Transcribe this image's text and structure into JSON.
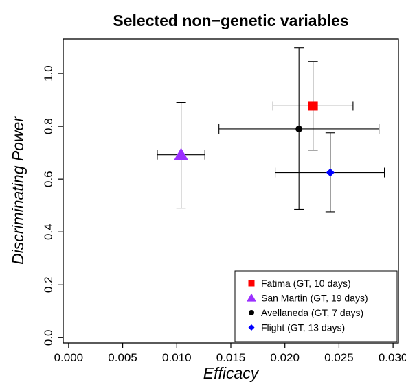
{
  "chart_data": {
    "type": "scatter",
    "title": "Selected non−genetic variables",
    "xlabel": "Efficacy",
    "ylabel": "Discriminating Power",
    "xlim": [
      -0.0005,
      0.0305
    ],
    "ylim": [
      -0.02,
      1.13
    ],
    "x_ticks": [
      0.0,
      0.005,
      0.01,
      0.015,
      0.02,
      0.025,
      0.03
    ],
    "x_tick_labels": [
      "0.000",
      "0.005",
      "0.010",
      "0.015",
      "0.020",
      "0.025",
      "0.030"
    ],
    "y_ticks": [
      0.0,
      0.2,
      0.4,
      0.6,
      0.8,
      1.0
    ],
    "y_tick_labels": [
      "0.0",
      "0.2",
      "0.4",
      "0.6",
      "0.8",
      "1.0"
    ],
    "grid": false,
    "legend_position": "bottom-right",
    "series": [
      {
        "name": "Fatima (GT, 10 days)",
        "marker": "square",
        "color": "#ff0000",
        "x": 0.0226,
        "y": 0.877,
        "x_err": [
          0.0189,
          0.0263
        ],
        "y_err": [
          0.71,
          1.045
        ]
      },
      {
        "name": "San Martin (GT, 19 days)",
        "marker": "triangle",
        "color": "#9b30ff",
        "x": 0.0104,
        "y": 0.692,
        "x_err": [
          0.0082,
          0.0126
        ],
        "y_err": [
          0.49,
          0.89
        ]
      },
      {
        "name": "Avellaneda (GT, 7 days)",
        "marker": "circle",
        "color": "#000000",
        "x": 0.0213,
        "y": 0.79,
        "x_err": [
          0.0139,
          0.0287
        ],
        "y_err": [
          0.485,
          1.097
        ]
      },
      {
        "name": "Flight (GT, 13 days)",
        "marker": "diamond",
        "color": "#0000ff",
        "x": 0.0242,
        "y": 0.625,
        "x_err": [
          0.0191,
          0.0292
        ],
        "y_err": [
          0.476,
          0.775
        ]
      }
    ]
  }
}
